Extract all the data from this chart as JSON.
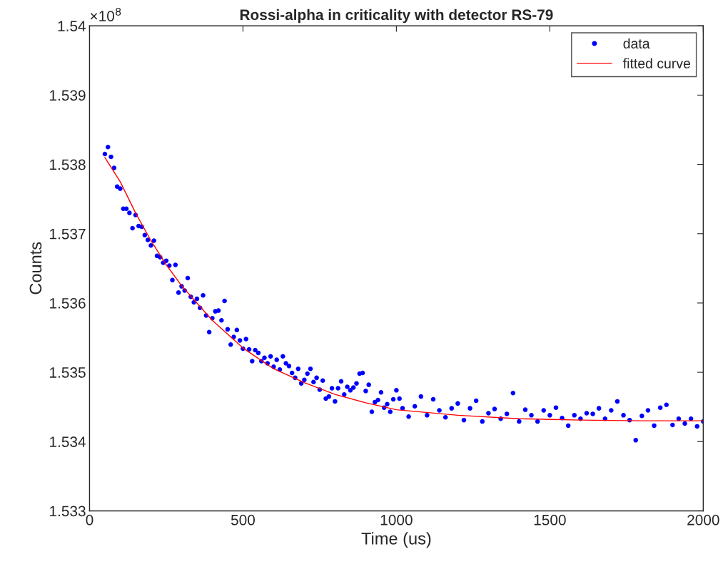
{
  "chart_data": {
    "type": "scatter",
    "title": "Rossi-alpha in criticality with detector RS-79",
    "xlabel": "Time (us)",
    "ylabel": "Counts",
    "annotations": [
      "×10$^{8}$"
    ],
    "xlim": [
      0,
      2000
    ],
    "xticks": [
      0,
      500,
      1000,
      1500,
      2000
    ],
    "ylim": [
      1.533,
      1.54
    ],
    "yticks": [
      1.533,
      1.534,
      1.535,
      1.536,
      1.537,
      1.538,
      1.539,
      1.54
    ],
    "grid": false,
    "legend": "top right",
    "series": [
      {
        "name": "data",
        "marker": "circle",
        "color": "#0000ff",
        "x": [
          50,
          60,
          70,
          80,
          90,
          100,
          110,
          120,
          130,
          140,
          150,
          160,
          170,
          180,
          190,
          200,
          210,
          220,
          230,
          240,
          250,
          260,
          270,
          280,
          290,
          300,
          310,
          320,
          330,
          340,
          350,
          360,
          370,
          380,
          390,
          400,
          410,
          420,
          430,
          440,
          450,
          460,
          470,
          480,
          490,
          500,
          510,
          520,
          530,
          540,
          550,
          560,
          570,
          580,
          590,
          600,
          610,
          620,
          630,
          640,
          650,
          660,
          670,
          680,
          690,
          700,
          710,
          720,
          730,
          740,
          750,
          760,
          770,
          780,
          790,
          800,
          810,
          820,
          830,
          840,
          850,
          860,
          870,
          880,
          890,
          900,
          910,
          920,
          930,
          940,
          950,
          960,
          970,
          980,
          990,
          1000,
          1010,
          1020,
          1040,
          1060,
          1080,
          1100,
          1120,
          1140,
          1160,
          1180,
          1200,
          1220,
          1240,
          1260,
          1280,
          1300,
          1320,
          1340,
          1360,
          1380,
          1400,
          1420,
          1440,
          1460,
          1480,
          1500,
          1520,
          1540,
          1560,
          1580,
          1600,
          1620,
          1640,
          1660,
          1680,
          1700,
          1720,
          1740,
          1760,
          1780,
          1800,
          1820,
          1840,
          1860,
          1880,
          1900,
          1920,
          1940,
          1960,
          1980,
          2000
        ],
        "values": [
          1.53815,
          1.53825,
          1.53811,
          1.53795,
          1.53768,
          1.53765,
          1.53736,
          1.53736,
          1.5373,
          1.53708,
          1.53727,
          1.53711,
          1.5371,
          1.53698,
          1.53691,
          1.53683,
          1.5369,
          1.53668,
          1.53666,
          1.53658,
          1.53661,
          1.53654,
          1.53633,
          1.53655,
          1.53615,
          1.53624,
          1.53618,
          1.53636,
          1.53609,
          1.53601,
          1.53606,
          1.53593,
          1.53611,
          1.53582,
          1.53558,
          1.53578,
          1.53588,
          1.53589,
          1.53575,
          1.53603,
          1.53562,
          1.5354,
          1.53551,
          1.53561,
          1.53546,
          1.53534,
          1.53548,
          1.53533,
          1.53516,
          1.53532,
          1.53528,
          1.53516,
          1.53521,
          1.53513,
          1.53523,
          1.53508,
          1.53518,
          1.53504,
          1.53523,
          1.53513,
          1.53509,
          1.53499,
          1.53492,
          1.53505,
          1.53484,
          1.53489,
          1.53498,
          1.53505,
          1.53486,
          1.53492,
          1.53475,
          1.53488,
          1.53462,
          1.53465,
          1.53477,
          1.53458,
          1.53477,
          1.53487,
          1.53468,
          1.53479,
          1.53474,
          1.53478,
          1.53484,
          1.53498,
          1.53499,
          1.53473,
          1.53482,
          1.53443,
          1.53457,
          1.5346,
          1.53471,
          1.53449,
          1.53454,
          1.53443,
          1.53461,
          1.53474,
          1.53462,
          1.53448,
          1.53436,
          1.53451,
          1.53465,
          1.53438,
          1.53461,
          1.53445,
          1.53435,
          1.53448,
          1.53455,
          1.53431,
          1.53448,
          1.53459,
          1.53429,
          1.53441,
          1.53447,
          1.53433,
          1.5344,
          1.5347,
          1.53429,
          1.53446,
          1.53438,
          1.53429,
          1.53445,
          1.53438,
          1.53449,
          1.53434,
          1.53423,
          1.53438,
          1.53433,
          1.53441,
          1.5344,
          1.53448,
          1.53433,
          1.53445,
          1.53458,
          1.53438,
          1.53431,
          1.53402,
          1.53437,
          1.53445,
          1.53423,
          1.53449,
          1.53453,
          1.53424,
          1.53433,
          1.53426,
          1.53433,
          1.53422,
          1.53429
        ]
      },
      {
        "name": "fitted curve",
        "type": "line",
        "marker": "none",
        "line_style": "solid",
        "color": "#ff0000",
        "x": [
          50,
          100,
          150,
          200,
          250,
          300,
          400,
          500,
          600,
          700,
          800,
          900,
          1000,
          1200,
          1400,
          1600,
          1800,
          2000
        ],
        "values": [
          1.5381,
          1.53775,
          1.5373,
          1.5369,
          1.53655,
          1.53625,
          1.53575,
          1.53535,
          1.53505,
          1.53485,
          1.53468,
          1.53456,
          1.53446,
          1.53438,
          1.53433,
          1.53431,
          1.5343,
          1.5343
        ]
      }
    ]
  }
}
